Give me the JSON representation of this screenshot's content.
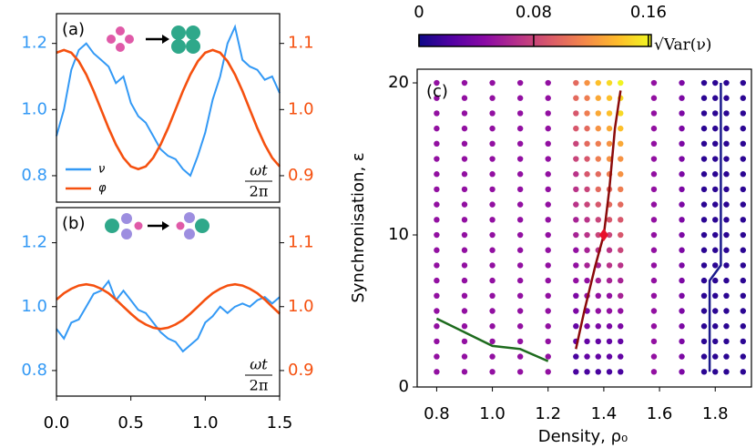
{
  "chart_data": [
    {
      "type": "line",
      "label": "(a)",
      "x_label": {
        "numerator": "ωt",
        "denominator": "2π"
      },
      "x": [
        0,
        0.05,
        0.1,
        0.15,
        0.2,
        0.25,
        0.3,
        0.35,
        0.4,
        0.45,
        0.5,
        0.55,
        0.6,
        0.65,
        0.7,
        0.75,
        0.8,
        0.85,
        0.9,
        0.95,
        1.0,
        1.05,
        1.1,
        1.15,
        1.2,
        1.25,
        1.3,
        1.35,
        1.4,
        1.45,
        1.5
      ],
      "xlim": [
        0,
        1.5
      ],
      "ylim": [
        0.72,
        1.29
      ],
      "y2lim": [
        0.86,
        1.145
      ],
      "yticks": [
        0.8,
        {
          "value": 1.0,
          "label": "1.0"
        },
        1.2
      ],
      "y2ticks": [
        0.9,
        {
          "value": 1.0,
          "label": "1.0"
        },
        1.1
      ],
      "legend": "lower left",
      "series": [
        {
          "name": "ν",
          "color": "#3399f5",
          "values": [
            0.92,
            1.0,
            1.12,
            1.18,
            1.2,
            1.17,
            1.15,
            1.13,
            1.08,
            1.1,
            1.02,
            0.98,
            0.96,
            0.92,
            0.88,
            0.86,
            0.85,
            0.82,
            0.8,
            0.86,
            0.93,
            1.03,
            1.1,
            1.2,
            1.25,
            1.15,
            1.13,
            1.12,
            1.09,
            1.1,
            1.05
          ]
        },
        {
          "name": "φ",
          "color": "#f5500f",
          "axis": "y2",
          "values": [
            1.086,
            1.09,
            1.086,
            1.073,
            1.053,
            1.028,
            1.0,
            0.972,
            0.947,
            0.927,
            0.914,
            0.91,
            0.914,
            0.927,
            0.947,
            0.972,
            1.0,
            1.028,
            1.053,
            1.073,
            1.086,
            1.09,
            1.086,
            1.073,
            1.053,
            1.028,
            1.0,
            0.972,
            0.947,
            0.927,
            0.914
          ]
        }
      ]
    },
    {
      "type": "line",
      "label": "(b)",
      "x_label": {
        "numerator": "ωt",
        "denominator": "2π"
      },
      "x": [
        0,
        0.05,
        0.1,
        0.15,
        0.2,
        0.25,
        0.3,
        0.35,
        0.4,
        0.45,
        0.5,
        0.55,
        0.6,
        0.65,
        0.7,
        0.75,
        0.8,
        0.85,
        0.9,
        0.95,
        1.0,
        1.05,
        1.1,
        1.15,
        1.2,
        1.25,
        1.3,
        1.35,
        1.4,
        1.45,
        1.5
      ],
      "xlim": [
        0,
        1.5
      ],
      "ylim": [
        0.72,
        1.31
      ],
      "y2lim": [
        0.86,
        1.155
      ],
      "xticks": [
        {
          "value": 0,
          "label": "0.0"
        },
        0.5,
        {
          "value": 1.0,
          "label": "1.0"
        },
        1.5
      ],
      "yticks": [
        0.8,
        {
          "value": 1.0,
          "label": "1.0"
        },
        1.2
      ],
      "y2ticks": [
        0.9,
        {
          "value": 1.0,
          "label": "1.0"
        },
        1.1
      ],
      "series": [
        {
          "color": "#3399f5",
          "values": [
            0.93,
            0.9,
            0.95,
            0.96,
            1.0,
            1.04,
            1.05,
            1.08,
            1.02,
            1.05,
            1.02,
            0.99,
            0.98,
            0.95,
            0.92,
            0.9,
            0.89,
            0.86,
            0.88,
            0.9,
            0.95,
            0.97,
            1.0,
            0.98,
            1.0,
            1.01,
            1.0,
            1.02,
            1.03,
            1.01,
            1.03
          ]
        },
        {
          "color": "#f5500f",
          "axis": "y2",
          "values": [
            1.011,
            1.021,
            1.028,
            1.033,
            1.035,
            1.033,
            1.028,
            1.021,
            1.011,
            1.0,
            0.989,
            0.979,
            0.972,
            0.967,
            0.965,
            0.967,
            0.972,
            0.979,
            0.989,
            1.0,
            1.011,
            1.021,
            1.028,
            1.033,
            1.035,
            1.033,
            1.028,
            1.021,
            1.011,
            1.0,
            0.989
          ]
        }
      ]
    },
    {
      "type": "scatter",
      "label": "(c)",
      "x_label": "Density, ρ₀",
      "y_label": "Synchronisation, ε",
      "xlim": [
        0.73,
        1.93
      ],
      "ylim": [
        0,
        20.9
      ],
      "xticks": [
        0.8,
        {
          "value": 1.0,
          "label": "1.0"
        },
        1.2,
        1.4,
        1.6,
        1.8
      ],
      "yticks": [
        0,
        10,
        20
      ],
      "colormap": "plasma",
      "colorbar_label": "√Var(ν)",
      "clim": [
        0,
        0.162
      ],
      "cticks": [
        0,
        0.08,
        0.16
      ],
      "x": [
        0.8,
        0.9,
        1.0,
        1.1,
        1.2,
        1.3,
        1.34,
        1.38,
        1.42,
        1.46,
        1.58,
        1.68,
        1.76,
        1.8,
        1.84,
        1.9
      ],
      "y": [
        1,
        2,
        3,
        4,
        5,
        6,
        7,
        8,
        9,
        10,
        11,
        12,
        13,
        14,
        15,
        16,
        17,
        18,
        19,
        20
      ],
      "values": [
        [
          0.05,
          0.05,
          0.05,
          0.05,
          0.05,
          0.02,
          0.02,
          0.02,
          0.02,
          0.02,
          0.05,
          0.04,
          0.01,
          0.01,
          0.01,
          0.01
        ],
        [
          0.05,
          0.05,
          0.05,
          0.05,
          0.05,
          0.02,
          0.03,
          0.03,
          0.03,
          0.03,
          0.05,
          0.04,
          0.01,
          0.01,
          0.01,
          0.01
        ],
        [
          0.05,
          0.05,
          0.05,
          0.05,
          0.05,
          0.03,
          0.03,
          0.03,
          0.03,
          0.03,
          0.05,
          0.04,
          0.01,
          0.01,
          0.01,
          0.01
        ],
        [
          0.05,
          0.05,
          0.05,
          0.05,
          0.05,
          0.03,
          0.04,
          0.04,
          0.04,
          0.04,
          0.05,
          0.04,
          0.01,
          0.01,
          0.01,
          0.01
        ],
        [
          0.05,
          0.05,
          0.05,
          0.05,
          0.05,
          0.04,
          0.04,
          0.05,
          0.05,
          0.05,
          0.05,
          0.04,
          0.01,
          0.01,
          0.01,
          0.01
        ],
        [
          0.05,
          0.05,
          0.05,
          0.05,
          0.05,
          0.04,
          0.05,
          0.05,
          0.05,
          0.06,
          0.05,
          0.04,
          0.01,
          0.01,
          0.01,
          0.01
        ],
        [
          0.05,
          0.05,
          0.05,
          0.05,
          0.05,
          0.05,
          0.05,
          0.06,
          0.06,
          0.06,
          0.05,
          0.04,
          0.01,
          0.01,
          0.01,
          0.01
        ],
        [
          0.05,
          0.05,
          0.05,
          0.05,
          0.05,
          0.05,
          0.06,
          0.06,
          0.07,
          0.07,
          0.05,
          0.04,
          0.01,
          0.01,
          0.01,
          0.01
        ],
        [
          0.05,
          0.05,
          0.05,
          0.05,
          0.05,
          0.05,
          0.06,
          0.07,
          0.07,
          0.08,
          0.05,
          0.04,
          0.01,
          0.01,
          0.01,
          0.01
        ],
        [
          0.05,
          0.05,
          0.05,
          0.05,
          0.05,
          0.06,
          0.07,
          0.08,
          0.08,
          0.09,
          0.05,
          0.04,
          0.01,
          0.01,
          0.01,
          0.01
        ],
        [
          0.05,
          0.05,
          0.05,
          0.05,
          0.05,
          0.06,
          0.07,
          0.08,
          0.09,
          0.09,
          0.05,
          0.04,
          0.01,
          0.01,
          0.01,
          0.01
        ],
        [
          0.05,
          0.05,
          0.05,
          0.05,
          0.05,
          0.07,
          0.08,
          0.09,
          0.1,
          0.1,
          0.05,
          0.04,
          0.01,
          0.01,
          0.01,
          0.01
        ],
        [
          0.05,
          0.05,
          0.05,
          0.05,
          0.05,
          0.07,
          0.08,
          0.1,
          0.1,
          0.11,
          0.05,
          0.04,
          0.01,
          0.01,
          0.01,
          0.01
        ],
        [
          0.05,
          0.05,
          0.05,
          0.05,
          0.05,
          0.07,
          0.09,
          0.1,
          0.11,
          0.12,
          0.05,
          0.04,
          0.01,
          0.01,
          0.01,
          0.01
        ],
        [
          0.05,
          0.05,
          0.05,
          0.05,
          0.05,
          0.08,
          0.09,
          0.11,
          0.12,
          0.12,
          0.05,
          0.04,
          0.01,
          0.01,
          0.01,
          0.01
        ],
        [
          0.05,
          0.05,
          0.05,
          0.05,
          0.05,
          0.08,
          0.1,
          0.11,
          0.12,
          0.13,
          0.05,
          0.04,
          0.01,
          0.01,
          0.01,
          0.01
        ],
        [
          0.05,
          0.05,
          0.05,
          0.05,
          0.05,
          0.09,
          0.1,
          0.12,
          0.13,
          0.14,
          0.05,
          0.04,
          0.01,
          0.01,
          0.01,
          0.01
        ],
        [
          0.05,
          0.05,
          0.05,
          0.05,
          0.05,
          0.09,
          0.11,
          0.13,
          0.14,
          0.15,
          0.05,
          0.04,
          0.01,
          0.01,
          0.01,
          0.01
        ],
        [
          0.05,
          0.05,
          0.05,
          0.05,
          0.05,
          0.1,
          0.11,
          0.13,
          0.14,
          0.15,
          0.05,
          0.04,
          0.01,
          0.01,
          0.01,
          0.01
        ],
        [
          0.05,
          0.05,
          0.05,
          0.05,
          0.05,
          0.1,
          0.12,
          0.14,
          0.15,
          0.16,
          0.05,
          0.04,
          0.01,
          0.01,
          0.01,
          0.01
        ]
      ],
      "lines": [
        {
          "color": "#1d6b1d",
          "x": [
            0.8,
            0.9,
            1.0,
            1.1,
            1.2
          ],
          "y": [
            4.5,
            3.6,
            2.7,
            2.5,
            1.7
          ]
        },
        {
          "color": "#8b0a0a",
          "x": [
            1.3,
            1.33,
            1.37,
            1.4,
            1.42,
            1.44,
            1.46
          ],
          "y": [
            2.5,
            5,
            8,
            10,
            13,
            17,
            19.5
          ]
        },
        {
          "color": "#1a1a8c",
          "x": [
            1.78,
            1.78,
            1.82,
            1.82
          ],
          "y": [
            1,
            7,
            8,
            20
          ]
        }
      ],
      "marker": {
        "x": 1.4,
        "y": 10,
        "color": "#e8102a"
      }
    }
  ]
}
